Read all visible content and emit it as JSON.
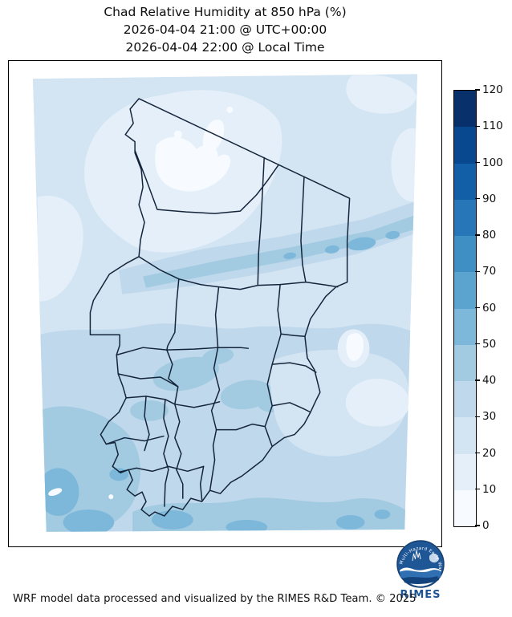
{
  "figure": {
    "title_line1": "Chad Relative Humidity at 850 hPa (%)",
    "title_line2": "2026-04-04 21:00 @ UTC+00:00",
    "title_line3": "2026-04-04 22:00 @ Local Time",
    "footer": "WRF model data processed and visualized by the RIMES R&D Team. © 2025"
  },
  "colorbar": {
    "min": 0,
    "max": 120,
    "tick_step": 10,
    "ticks": [
      0,
      10,
      20,
      30,
      40,
      50,
      60,
      70,
      80,
      90,
      100,
      110,
      120
    ],
    "colors_bottom_to_top": [
      "#f7fbff",
      "#e4eff9",
      "#d3e4f3",
      "#bfd8ec",
      "#a2cbe2",
      "#7db8da",
      "#5ca4d0",
      "#3f8fc4",
      "#2777b8",
      "#135fa7",
      "#08488f",
      "#08306b"
    ]
  },
  "map": {
    "region": "Chad",
    "variable": "Relative Humidity",
    "units": "%",
    "boundary_color": "#14243a"
  },
  "logo": {
    "label": "RIMES",
    "ring_text": "Multi-Hazard Early Warning",
    "circle_color": "#1f5796",
    "text_color": "#1d5496"
  },
  "chart_data": {
    "type": "heatmap",
    "title": "Chad Relative Humidity at 850 hPa (%)",
    "legend_position": "right",
    "colormap": "Blues, discrete 12 bins",
    "colorbar_range": [
      0,
      120
    ],
    "colorbar_ticks": [
      0,
      10,
      20,
      30,
      40,
      50,
      60,
      70,
      80,
      90,
      100,
      110,
      120
    ],
    "value_summary": {
      "north_tibesti_patches": "0-10 %",
      "north_general": "10-30 %",
      "northeast_diagonal_band": "40-60 %",
      "central_belt": "30-40 %",
      "southwest_corner": "40-60 %",
      "southern_band": "40-60 %",
      "southeast_interior": "10-30 % with small 0-10 lake spot"
    }
  }
}
